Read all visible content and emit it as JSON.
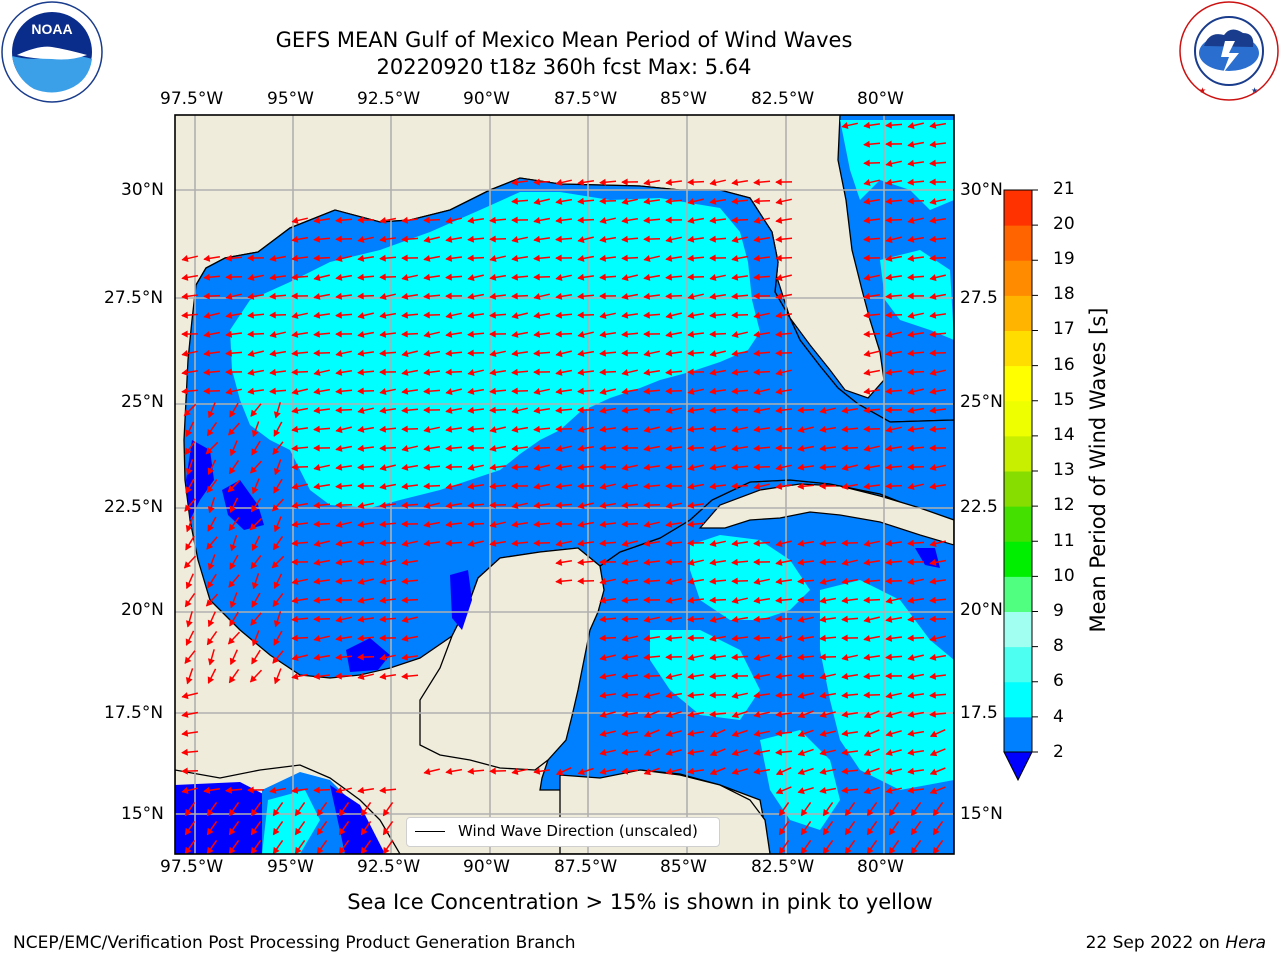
{
  "title": {
    "line1": "GEFS MEAN Gulf of Mexico Mean Period of Wind Waves",
    "line2": "20220920 t18z 360h fcst   Max: 5.64"
  },
  "logos": {
    "left": "NOAA",
    "left_ring": "NATIONAL OCEANIC AND ATMOSPHERIC ADMINISTRATION · U.S. DEPARTMENT OF COMMERCE",
    "right_ring": "NATIONAL WEATHER SERVICE"
  },
  "map": {
    "lon_labels": [
      "97.5°W",
      "95°W",
      "92.5°W",
      "90°W",
      "87.5°W",
      "85°W",
      "82.5°W",
      "80°W"
    ],
    "lat_labels": [
      "30°N",
      "27.5°N",
      "25°N",
      "22.5°N",
      "20°N",
      "17.5°N",
      "15°N"
    ],
    "lat_labels_right": [
      "30°N",
      "27.5",
      "25°N",
      "22.5",
      "20°N",
      "17.5",
      "15°N"
    ],
    "legend": "Wind Wave Direction (unscaled)",
    "colors": {
      "land": "#efecdc",
      "wave_2_4": "#0080ff",
      "wave_4_6": "#00ffff",
      "wave_lt_2": "#0000ff",
      "arrow": "#ff0000",
      "grid": "#b0b0b0"
    }
  },
  "colorbar": {
    "label": "Mean Period of Wind Waves [s]",
    "ticks": [
      "2",
      "4",
      "6",
      "8",
      "9",
      "10",
      "11",
      "12",
      "13",
      "14",
      "15",
      "16",
      "17",
      "18",
      "19",
      "20",
      "21"
    ],
    "colors": [
      "#0080ff",
      "#00ffff",
      "#4dfff0",
      "#a0fff0",
      "#50ff80",
      "#00ee00",
      "#44e000",
      "#88dd00",
      "#c8ee00",
      "#eeff00",
      "#ffff00",
      "#ffdd00",
      "#ffb400",
      "#ff8c00",
      "#ff6400",
      "#ff3200",
      "#ff0000"
    ]
  },
  "footer": {
    "note": "Sea Ice Concentration > 15% is shown in pink to yellow",
    "left": "NCEP/EMC/Verification Post Processing Product Generation Branch",
    "right_date": "22 Sep 2022 on ",
    "right_host": "Hera"
  }
}
